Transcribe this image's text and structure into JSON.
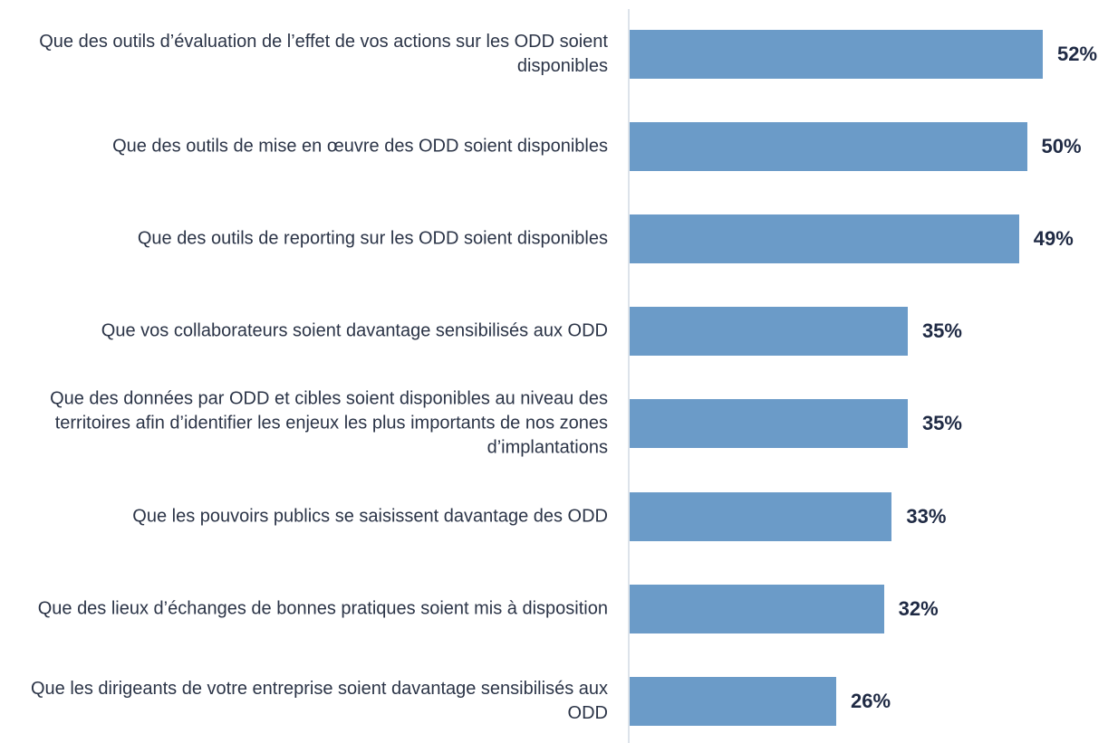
{
  "chart_data": {
    "type": "bar",
    "orientation": "horizontal",
    "categories": [
      "Que des outils d’évaluation de l’effet de vos actions sur les ODD soient disponibles",
      "Que des outils de mise en œuvre des ODD soient disponibles",
      "Que des outils de reporting sur les ODD soient disponibles",
      "Que vos collaborateurs soient davantage sensibilisés aux ODD",
      "Que des données par ODD et cibles soient disponibles au niveau des territoires afin d’identifier les enjeux les plus importants de nos zones d’implantations",
      "Que les pouvoirs publics se saisissent davantage des ODD",
      "Que des lieux d’échanges de bonnes pratiques soient mis à disposition",
      "Que les dirigeants de votre entreprise soient davantage sensibilisés aux ODD"
    ],
    "values": [
      52,
      50,
      49,
      35,
      35,
      33,
      32,
      26
    ],
    "value_labels": [
      "52%",
      "50%",
      "49%",
      "35%",
      "35%",
      "33%",
      "32%",
      "26%"
    ],
    "color": "#6b9bc8"
  }
}
